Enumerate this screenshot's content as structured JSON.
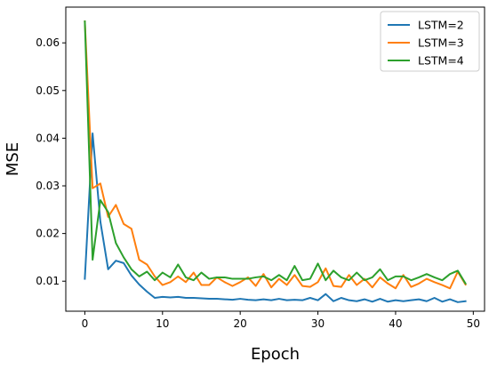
{
  "chart_data": {
    "type": "line",
    "title": "",
    "xlabel": "Epoch",
    "ylabel": "MSE",
    "xlim": [
      -2.45,
      51.45
    ],
    "ylim": [
      0.0037,
      0.0675
    ],
    "xticks": [
      0,
      10,
      20,
      30,
      40,
      50
    ],
    "yticks": [
      0.01,
      0.02,
      0.03,
      0.04,
      0.05,
      0.06
    ],
    "ytick_labels": [
      "0.01",
      "0.02",
      "0.03",
      "0.04",
      "0.05",
      "0.06"
    ],
    "grid": false,
    "legend_position": "top-right",
    "x": [
      0,
      1,
      2,
      3,
      4,
      5,
      6,
      7,
      8,
      9,
      10,
      11,
      12,
      13,
      14,
      15,
      16,
      17,
      18,
      19,
      20,
      21,
      22,
      23,
      24,
      25,
      26,
      27,
      28,
      29,
      30,
      31,
      32,
      33,
      34,
      35,
      36,
      37,
      38,
      39,
      40,
      41,
      42,
      43,
      44,
      45,
      46,
      47,
      48,
      49
    ],
    "series": [
      {
        "name": "LSTM=2",
        "color": "#1f77b4",
        "values": [
          0.0105,
          0.041,
          0.0225,
          0.0125,
          0.0143,
          0.0138,
          0.0112,
          0.0093,
          0.0078,
          0.0065,
          0.0067,
          0.0066,
          0.0067,
          0.0065,
          0.0065,
          0.0064,
          0.0063,
          0.0063,
          0.0062,
          0.0061,
          0.0063,
          0.0061,
          0.006,
          0.0062,
          0.006,
          0.0063,
          0.006,
          0.0061,
          0.006,
          0.0065,
          0.006,
          0.0073,
          0.0058,
          0.0065,
          0.006,
          0.0058,
          0.0062,
          0.0057,
          0.0063,
          0.0057,
          0.006,
          0.0058,
          0.006,
          0.0062,
          0.0058,
          0.0065,
          0.0057,
          0.0062,
          0.0056,
          0.0058
        ]
      },
      {
        "name": "LSTM=3",
        "color": "#ff7f0e",
        "values": [
          0.0645,
          0.0295,
          0.0305,
          0.0235,
          0.026,
          0.022,
          0.021,
          0.0145,
          0.0135,
          0.011,
          0.0092,
          0.0098,
          0.011,
          0.0098,
          0.0118,
          0.0092,
          0.0092,
          0.0108,
          0.0098,
          0.009,
          0.0098,
          0.0108,
          0.009,
          0.0115,
          0.0087,
          0.0105,
          0.0092,
          0.0113,
          0.009,
          0.0088,
          0.0098,
          0.0127,
          0.009,
          0.0088,
          0.0113,
          0.0092,
          0.0105,
          0.0087,
          0.0108,
          0.0095,
          0.0085,
          0.0113,
          0.0088,
          0.0095,
          0.0105,
          0.0098,
          0.0092,
          0.0085,
          0.012,
          0.0093
        ]
      },
      {
        "name": "LSTM=4",
        "color": "#2ca02c",
        "values": [
          0.0645,
          0.0145,
          0.027,
          0.0245,
          0.018,
          0.015,
          0.0125,
          0.011,
          0.012,
          0.0102,
          0.0118,
          0.0108,
          0.0135,
          0.0108,
          0.0102,
          0.0118,
          0.0105,
          0.0108,
          0.0108,
          0.0105,
          0.0105,
          0.0105,
          0.0108,
          0.011,
          0.0102,
          0.0113,
          0.0102,
          0.0132,
          0.0102,
          0.0105,
          0.0137,
          0.0102,
          0.0122,
          0.0108,
          0.0102,
          0.0118,
          0.0102,
          0.0108,
          0.0125,
          0.0102,
          0.011,
          0.011,
          0.0102,
          0.0108,
          0.0115,
          0.0108,
          0.0102,
          0.0115,
          0.0122,
          0.0095
        ]
      }
    ]
  }
}
